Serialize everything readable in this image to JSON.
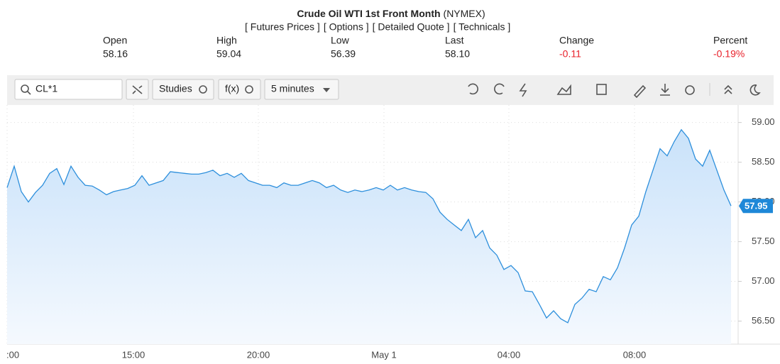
{
  "header": {
    "title": "Crude Oil WTI 1st Front Month",
    "exchange": "(NYMEX)",
    "links": [
      "[ Futures Prices ]",
      "[ Options ]",
      "[ Detailed Quote ]",
      "[ Technicals ]"
    ],
    "quote": [
      {
        "label": "Open",
        "value": "58.16"
      },
      {
        "label": "High",
        "value": "59.04"
      },
      {
        "label": "Low",
        "value": "56.39"
      },
      {
        "label": "Last",
        "value": "58.10"
      },
      {
        "label": "Change",
        "value": "-0.11"
      },
      {
        "label": "Percent",
        "value": "-0.19%"
      }
    ]
  },
  "toolbar": {
    "symbol": "CL*1",
    "studies": "Studies",
    "functions": "f(x)",
    "interval": "5 minutes"
  },
  "chart_data": {
    "type": "area",
    "color": "#2d8fdc",
    "grid": true,
    "values": [
      58.18,
      58.45,
      58.13,
      58.0,
      58.12,
      58.21,
      58.36,
      58.42,
      58.22,
      58.45,
      58.31,
      58.21,
      58.2,
      58.15,
      58.09,
      58.13,
      58.15,
      58.17,
      58.21,
      58.33,
      58.21,
      58.24,
      58.27,
      58.38,
      58.37,
      58.36,
      58.35,
      58.35,
      58.37,
      58.4,
      58.33,
      58.36,
      58.31,
      58.36,
      58.27,
      58.24,
      58.21,
      58.21,
      58.18,
      58.24,
      58.21,
      58.21,
      58.24,
      58.27,
      58.24,
      58.18,
      58.21,
      58.15,
      58.12,
      58.15,
      58.13,
      58.15,
      58.18,
      58.15,
      58.21,
      58.15,
      58.18,
      58.15,
      58.13,
      58.12,
      58.04,
      57.87,
      57.78,
      57.71,
      57.64,
      57.78,
      57.55,
      57.64,
      57.42,
      57.33,
      57.15,
      57.2,
      57.11,
      56.88,
      56.87,
      56.71,
      56.54,
      56.63,
      56.53,
      56.48,
      56.71,
      56.79,
      56.9,
      56.87,
      57.06,
      57.02,
      57.17,
      57.42,
      57.71,
      57.82,
      58.13,
      58.4,
      58.67,
      58.58,
      58.76,
      58.91,
      58.8,
      58.54,
      58.45,
      58.65,
      58.4,
      58.15,
      57.95
    ],
    "xlim": [
      0,
      103
    ],
    "xticks": [
      {
        "value": 0,
        "label": ":00"
      },
      {
        "value": 17.8,
        "label": "15:00"
      },
      {
        "value": 35.4,
        "label": "20:00"
      },
      {
        "value": 53.1,
        "label": "May 1"
      },
      {
        "value": 70.7,
        "label": "04:00"
      },
      {
        "value": 88.4,
        "label": "08:00"
      }
    ],
    "ylim": [
      56.21,
      59.22
    ],
    "yticks": [
      {
        "value": 56.5,
        "label": "56.50"
      },
      {
        "value": 57,
        "label": "57.00"
      },
      {
        "value": 57.5,
        "label": "57.50"
      },
      {
        "value": 58,
        "label": "58.00"
      },
      {
        "value": 58.5,
        "label": "58.50"
      },
      {
        "value": 59,
        "label": "59.00"
      }
    ]
  }
}
